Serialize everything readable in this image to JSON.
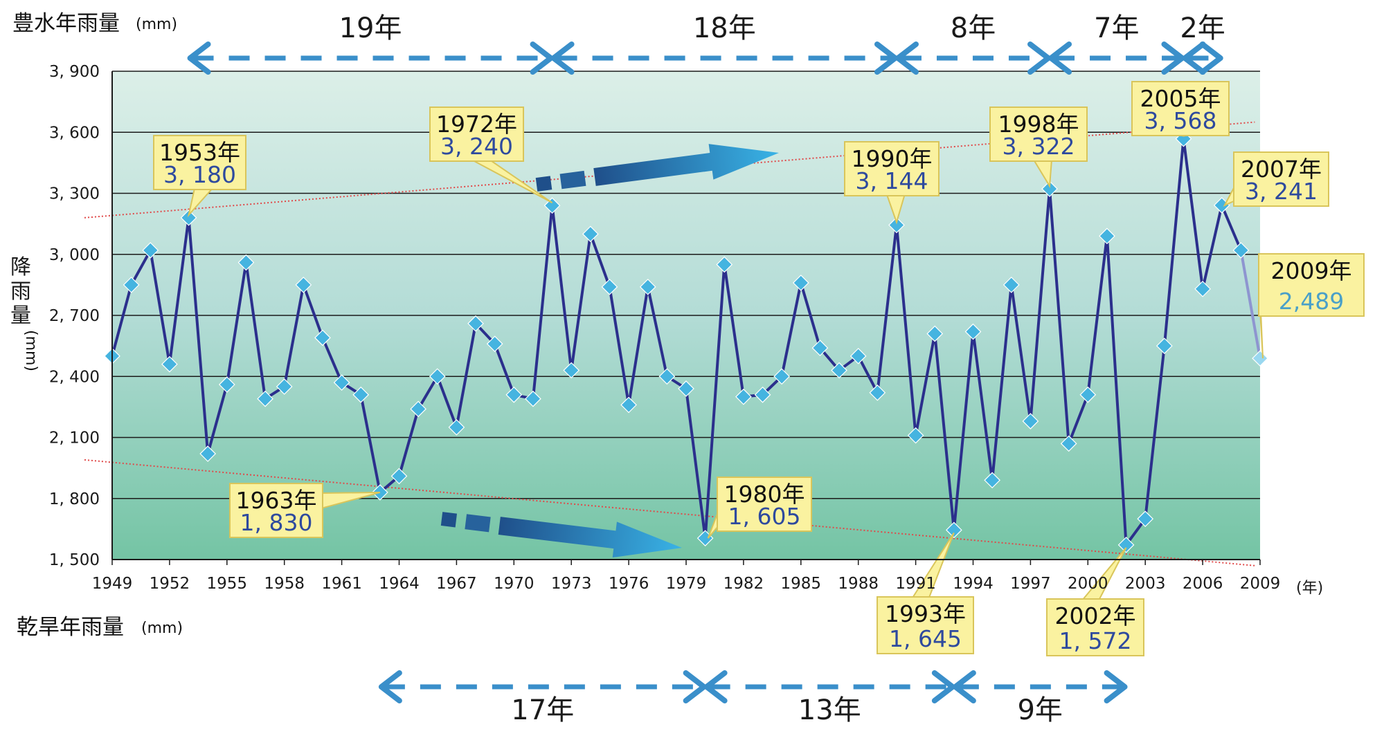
{
  "chart_data": {
    "type": "line",
    "top_left_label": "豊水年雨量",
    "top_left_unit": "(mm)",
    "bottom_left_label": "乾旱年雨量",
    "bottom_left_unit": "(mm)",
    "ylabel_chars": [
      "降",
      "雨",
      "量"
    ],
    "ylabel_unit": "(mm)",
    "x_unit": "(年)",
    "ylim": [
      1500,
      3900
    ],
    "xlim": [
      1949,
      2009
    ],
    "y_ticks": [
      {
        "value": 1500,
        "label": "1, 500"
      },
      {
        "value": 1800,
        "label": "1, 800"
      },
      {
        "value": 2100,
        "label": "2, 100"
      },
      {
        "value": 2400,
        "label": "2, 400"
      },
      {
        "value": 2700,
        "label": "2, 700"
      },
      {
        "value": 3000,
        "label": "3, 000"
      },
      {
        "value": 3300,
        "label": "3, 300"
      },
      {
        "value": 3600,
        "label": "3, 600"
      },
      {
        "value": 3900,
        "label": "3, 900"
      }
    ],
    "x_ticks": [
      1949,
      1952,
      1955,
      1958,
      1961,
      1964,
      1967,
      1970,
      1973,
      1976,
      1979,
      1982,
      1985,
      1988,
      1991,
      1994,
      1997,
      2000,
      2003,
      2006,
      2009
    ],
    "series": [
      {
        "x": [
          1949,
          1950,
          1951,
          1952,
          1953,
          1954,
          1955,
          1956,
          1957,
          1958,
          1959,
          1960,
          1961,
          1962,
          1963,
          1964,
          1965,
          1966,
          1967,
          1968,
          1969,
          1970,
          1971,
          1972,
          1973,
          1974,
          1975,
          1976,
          1977,
          1978,
          1979,
          1980,
          1981,
          1982,
          1983,
          1984,
          1985,
          1986,
          1987,
          1988,
          1989,
          1990,
          1991,
          1992,
          1993,
          1994,
          1995,
          1996,
          1997,
          1998,
          1999,
          2000,
          2001,
          2002,
          2003,
          2004,
          2005,
          2006,
          2007,
          2008
        ],
        "values": [
          2500,
          2850,
          3020,
          2460,
          3180,
          2020,
          2360,
          2960,
          2290,
          2350,
          2850,
          2590,
          2370,
          2310,
          1830,
          1910,
          2240,
          2400,
          2150,
          2660,
          2560,
          2310,
          2290,
          3240,
          2430,
          3100,
          2840,
          2260,
          2840,
          2400,
          2340,
          1605,
          2950,
          2300,
          2310,
          2400,
          2860,
          2540,
          2430,
          2500,
          2320,
          3144,
          2110,
          2610,
          1645,
          2620,
          1890,
          2850,
          2180,
          3322,
          2070,
          2310,
          3090,
          1572,
          1700,
          2550,
          3568,
          2830,
          3241,
          3020
        ]
      },
      {
        "x": [
          2008,
          2009
        ],
        "values": [
          3020,
          2489
        ]
      }
    ],
    "wet_trend": [
      [
        1949,
        3180
      ],
      [
        2008,
        3650
      ]
    ],
    "dry_trend": [
      [
        1949,
        1990
      ],
      [
        2008,
        1470
      ]
    ],
    "annotations": [
      {
        "year": "1953年",
        "value": "3, 180"
      },
      {
        "year": "1963年",
        "value": "1, 830"
      },
      {
        "year": "1972年",
        "value": "3, 240"
      },
      {
        "year": "1980年",
        "value": "1, 605"
      },
      {
        "year": "1990年",
        "value": "3, 144"
      },
      {
        "year": "1993年",
        "value": "1, 645"
      },
      {
        "year": "1998年",
        "value": "3, 322"
      },
      {
        "year": "2002年",
        "value": "1, 572"
      },
      {
        "year": "2005年",
        "value": "3, 568"
      },
      {
        "year": "2007年",
        "value": "3, 241"
      },
      {
        "year": "2009年",
        "value": "2,489"
      }
    ],
    "top_intervals": [
      {
        "label": "19年",
        "from": 1953,
        "to": 1972
      },
      {
        "label": "18年",
        "from": 1972,
        "to": 1990
      },
      {
        "label": "8年",
        "from": 1990,
        "to": 1998
      },
      {
        "label": "7年",
        "from": 1998,
        "to": 2005
      },
      {
        "label": "2年",
        "from": 2005,
        "to": 2007
      }
    ],
    "bottom_intervals": [
      {
        "label": "17年",
        "from": 1963,
        "to": 1980
      },
      {
        "label": "13年",
        "from": 1980,
        "to": 1993
      },
      {
        "label": "9年",
        "from": 1993,
        "to": 2002
      }
    ],
    "colors": {
      "line": "#2b2f8c",
      "marker": "#45b4e0",
      "last_segment": "#8e95d0",
      "trend": "#e04848",
      "arrow": "#3a8fca",
      "callout_fill": "#faf2a0",
      "callout_stroke": "#d9c55a",
      "plot_top": "#dcefe8",
      "plot_mid": "#b3dcd6",
      "plot_bottom": "#74c4a4"
    },
    "grid": true
  }
}
